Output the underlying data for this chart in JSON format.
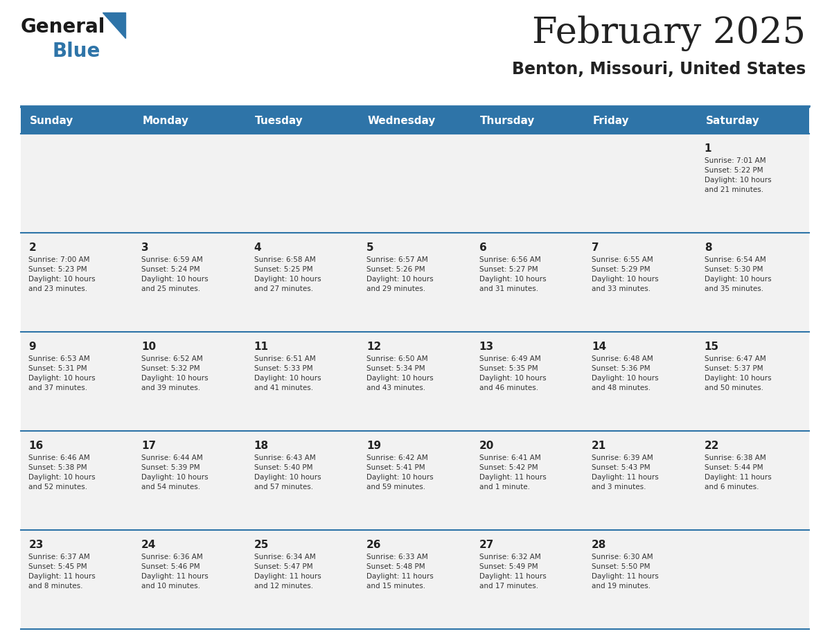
{
  "title": "February 2025",
  "subtitle": "Benton, Missouri, United States",
  "header_color": "#2E74A8",
  "header_text_color": "#FFFFFF",
  "day_names": [
    "Sunday",
    "Monday",
    "Tuesday",
    "Wednesday",
    "Thursday",
    "Friday",
    "Saturday"
  ],
  "grid_line_color": "#2E74A8",
  "cell_bg": "#F2F2F2",
  "cell_bg_white": "#FFFFFF",
  "text_color": "#333333",
  "day_number_color": "#222222",
  "logo_color1": "#1A1A1A",
  "logo_color2": "#2E74A8",
  "weeks": [
    [
      {
        "day": null,
        "info": null
      },
      {
        "day": null,
        "info": null
      },
      {
        "day": null,
        "info": null
      },
      {
        "day": null,
        "info": null
      },
      {
        "day": null,
        "info": null
      },
      {
        "day": null,
        "info": null
      },
      {
        "day": 1,
        "info": "Sunrise: 7:01 AM\nSunset: 5:22 PM\nDaylight: 10 hours\nand 21 minutes."
      }
    ],
    [
      {
        "day": 2,
        "info": "Sunrise: 7:00 AM\nSunset: 5:23 PM\nDaylight: 10 hours\nand 23 minutes."
      },
      {
        "day": 3,
        "info": "Sunrise: 6:59 AM\nSunset: 5:24 PM\nDaylight: 10 hours\nand 25 minutes."
      },
      {
        "day": 4,
        "info": "Sunrise: 6:58 AM\nSunset: 5:25 PM\nDaylight: 10 hours\nand 27 minutes."
      },
      {
        "day": 5,
        "info": "Sunrise: 6:57 AM\nSunset: 5:26 PM\nDaylight: 10 hours\nand 29 minutes."
      },
      {
        "day": 6,
        "info": "Sunrise: 6:56 AM\nSunset: 5:27 PM\nDaylight: 10 hours\nand 31 minutes."
      },
      {
        "day": 7,
        "info": "Sunrise: 6:55 AM\nSunset: 5:29 PM\nDaylight: 10 hours\nand 33 minutes."
      },
      {
        "day": 8,
        "info": "Sunrise: 6:54 AM\nSunset: 5:30 PM\nDaylight: 10 hours\nand 35 minutes."
      }
    ],
    [
      {
        "day": 9,
        "info": "Sunrise: 6:53 AM\nSunset: 5:31 PM\nDaylight: 10 hours\nand 37 minutes."
      },
      {
        "day": 10,
        "info": "Sunrise: 6:52 AM\nSunset: 5:32 PM\nDaylight: 10 hours\nand 39 minutes."
      },
      {
        "day": 11,
        "info": "Sunrise: 6:51 AM\nSunset: 5:33 PM\nDaylight: 10 hours\nand 41 minutes."
      },
      {
        "day": 12,
        "info": "Sunrise: 6:50 AM\nSunset: 5:34 PM\nDaylight: 10 hours\nand 43 minutes."
      },
      {
        "day": 13,
        "info": "Sunrise: 6:49 AM\nSunset: 5:35 PM\nDaylight: 10 hours\nand 46 minutes."
      },
      {
        "day": 14,
        "info": "Sunrise: 6:48 AM\nSunset: 5:36 PM\nDaylight: 10 hours\nand 48 minutes."
      },
      {
        "day": 15,
        "info": "Sunrise: 6:47 AM\nSunset: 5:37 PM\nDaylight: 10 hours\nand 50 minutes."
      }
    ],
    [
      {
        "day": 16,
        "info": "Sunrise: 6:46 AM\nSunset: 5:38 PM\nDaylight: 10 hours\nand 52 minutes."
      },
      {
        "day": 17,
        "info": "Sunrise: 6:44 AM\nSunset: 5:39 PM\nDaylight: 10 hours\nand 54 minutes."
      },
      {
        "day": 18,
        "info": "Sunrise: 6:43 AM\nSunset: 5:40 PM\nDaylight: 10 hours\nand 57 minutes."
      },
      {
        "day": 19,
        "info": "Sunrise: 6:42 AM\nSunset: 5:41 PM\nDaylight: 10 hours\nand 59 minutes."
      },
      {
        "day": 20,
        "info": "Sunrise: 6:41 AM\nSunset: 5:42 PM\nDaylight: 11 hours\nand 1 minute."
      },
      {
        "day": 21,
        "info": "Sunrise: 6:39 AM\nSunset: 5:43 PM\nDaylight: 11 hours\nand 3 minutes."
      },
      {
        "day": 22,
        "info": "Sunrise: 6:38 AM\nSunset: 5:44 PM\nDaylight: 11 hours\nand 6 minutes."
      }
    ],
    [
      {
        "day": 23,
        "info": "Sunrise: 6:37 AM\nSunset: 5:45 PM\nDaylight: 11 hours\nand 8 minutes."
      },
      {
        "day": 24,
        "info": "Sunrise: 6:36 AM\nSunset: 5:46 PM\nDaylight: 11 hours\nand 10 minutes."
      },
      {
        "day": 25,
        "info": "Sunrise: 6:34 AM\nSunset: 5:47 PM\nDaylight: 11 hours\nand 12 minutes."
      },
      {
        "day": 26,
        "info": "Sunrise: 6:33 AM\nSunset: 5:48 PM\nDaylight: 11 hours\nand 15 minutes."
      },
      {
        "day": 27,
        "info": "Sunrise: 6:32 AM\nSunset: 5:49 PM\nDaylight: 11 hours\nand 17 minutes."
      },
      {
        "day": 28,
        "info": "Sunrise: 6:30 AM\nSunset: 5:50 PM\nDaylight: 11 hours\nand 19 minutes."
      },
      {
        "day": null,
        "info": null
      }
    ]
  ],
  "fig_width": 11.88,
  "fig_height": 9.18,
  "dpi": 100
}
